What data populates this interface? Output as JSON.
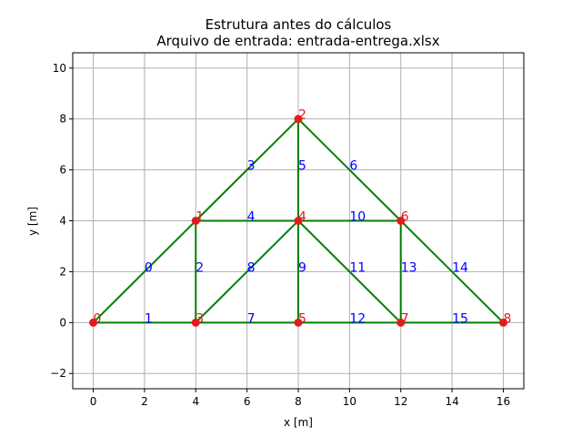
{
  "chart_data": {
    "type": "line",
    "title": "Estrutura antes do cálculos",
    "subtitle": "Arquivo de entrada: entrada-entrega.xlsx",
    "xlabel": "x [m]",
    "ylabel": "y [m]",
    "xlim": [
      -0.8,
      16.8
    ],
    "ylim": [
      -2.6,
      10.6
    ],
    "xticks": [
      0,
      2,
      4,
      6,
      8,
      10,
      12,
      14,
      16
    ],
    "yticks": [
      -2,
      0,
      2,
      4,
      6,
      8,
      10
    ],
    "grid": true,
    "colors": {
      "members": "#008000",
      "nodes": "#e31a1c",
      "node_labels": "#e31a1c",
      "member_labels": "#0000ff",
      "grid": "#b0b0b0"
    },
    "nodes": [
      {
        "id": "0",
        "x": 0,
        "y": 0
      },
      {
        "id": "1",
        "x": 4,
        "y": 4
      },
      {
        "id": "2",
        "x": 8,
        "y": 8
      },
      {
        "id": "3",
        "x": 4,
        "y": 0
      },
      {
        "id": "4",
        "x": 8,
        "y": 4
      },
      {
        "id": "5",
        "x": 8,
        "y": 0
      },
      {
        "id": "6",
        "x": 12,
        "y": 4
      },
      {
        "id": "7",
        "x": 12,
        "y": 0
      },
      {
        "id": "8",
        "x": 16,
        "y": 0
      }
    ],
    "members": [
      {
        "id": "0",
        "from": 0,
        "to": 1
      },
      {
        "id": "1",
        "from": 0,
        "to": 3
      },
      {
        "id": "2",
        "from": 1,
        "to": 3
      },
      {
        "id": "3",
        "from": 1,
        "to": 2
      },
      {
        "id": "4",
        "from": 1,
        "to": 4
      },
      {
        "id": "5",
        "from": 2,
        "to": 4
      },
      {
        "id": "6",
        "from": 2,
        "to": 6
      },
      {
        "id": "7",
        "from": 3,
        "to": 5
      },
      {
        "id": "8",
        "from": 3,
        "to": 4
      },
      {
        "id": "9",
        "from": 4,
        "to": 5
      },
      {
        "id": "10",
        "from": 4,
        "to": 6
      },
      {
        "id": "11",
        "from": 4,
        "to": 7
      },
      {
        "id": "12",
        "from": 5,
        "to": 7
      },
      {
        "id": "13",
        "from": 6,
        "to": 7
      },
      {
        "id": "14",
        "from": 6,
        "to": 8
      },
      {
        "id": "15",
        "from": 7,
        "to": 8
      }
    ]
  }
}
